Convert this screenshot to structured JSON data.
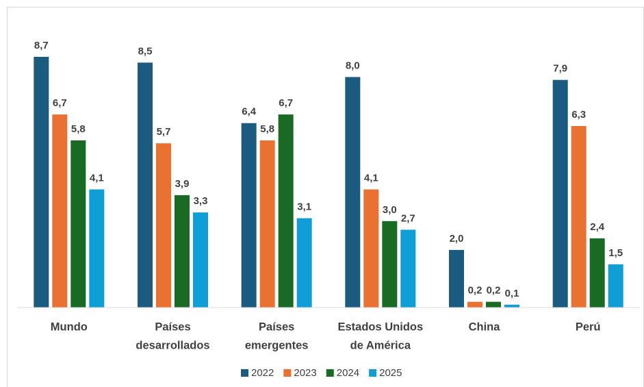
{
  "chart_data": {
    "type": "bar",
    "categories": [
      [
        "Mundo"
      ],
      [
        "Países",
        "desarrollados"
      ],
      [
        "Países",
        "emergentes"
      ],
      [
        "Estados Unidos",
        "de América"
      ],
      [
        "China"
      ],
      [
        "Perú"
      ]
    ],
    "series": [
      {
        "name": "2022",
        "color": "#1b5b80",
        "values": [
          8.7,
          8.5,
          6.4,
          8.0,
          2.0,
          7.9
        ],
        "value_labels": [
          "8,7",
          "8,5",
          "6,4",
          "8,0",
          "2,0",
          "7,9"
        ]
      },
      {
        "name": "2023",
        "color": "#e97132",
        "values": [
          6.7,
          5.7,
          5.8,
          4.1,
          0.2,
          6.3
        ],
        "value_labels": [
          "6,7",
          "5,7",
          "5,8",
          "4,1",
          "0,2",
          "6,3"
        ]
      },
      {
        "name": "2024",
        "color": "#196b24",
        "values": [
          5.8,
          3.9,
          6.7,
          3.0,
          0.2,
          2.4
        ],
        "value_labels": [
          "5,8",
          "3,9",
          "6,7",
          "3,0",
          "0,2",
          "2,4"
        ]
      },
      {
        "name": "2025",
        "color": "#0f9ed5",
        "values": [
          4.1,
          3.3,
          3.1,
          2.7,
          0.1,
          1.5
        ],
        "value_labels": [
          "4,1",
          "3,3",
          "3,1",
          "2,7",
          "0,1",
          "1,5"
        ]
      }
    ],
    "legend": "bottom"
  }
}
